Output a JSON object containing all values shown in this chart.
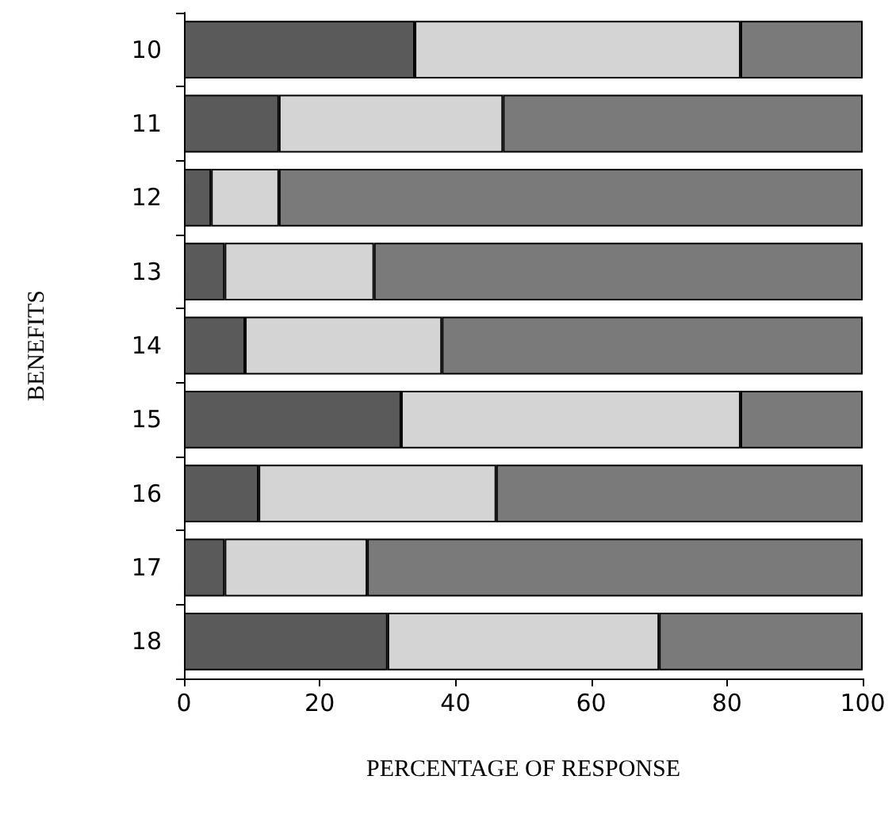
{
  "chart_data": {
    "type": "bar",
    "orientation": "horizontal",
    "stacked": true,
    "categories": [
      "10",
      "11",
      "12",
      "13",
      "14",
      "15",
      "16",
      "17",
      "18"
    ],
    "series": [
      {
        "color": "#5a5a5a",
        "values": [
          34,
          14,
          4,
          6,
          9,
          32,
          11,
          6,
          30
        ]
      },
      {
        "color": "#d4d4d4",
        "values": [
          48,
          33,
          10,
          22,
          29,
          50,
          35,
          21,
          40
        ]
      },
      {
        "color": "#7a7a7a",
        "values": [
          18,
          53,
          86,
          72,
          62,
          18,
          54,
          73,
          30
        ]
      }
    ],
    "xlim": [
      0,
      100
    ],
    "xticks": [
      0,
      20,
      40,
      60,
      80,
      100
    ],
    "xlabel": "PERCENTAGE OF RESPONSE",
    "ylabel": "BENEFITS",
    "grid": false
  }
}
